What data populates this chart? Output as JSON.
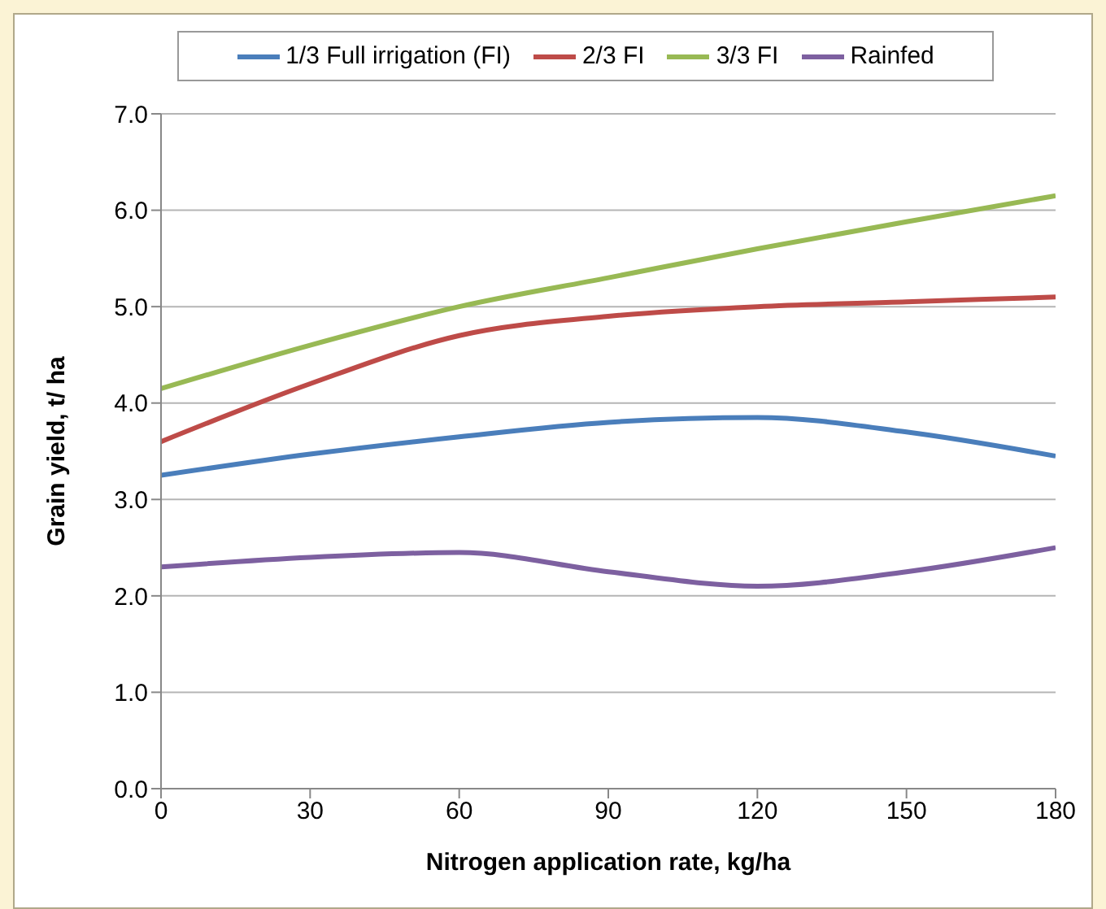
{
  "chart_data": {
    "type": "line",
    "xlabel": "Nitrogen application rate, kg/ha",
    "ylabel": "Grain yield, t/ ha",
    "x": [
      0,
      30,
      60,
      90,
      120,
      150,
      180
    ],
    "series": [
      {
        "name": "1/3 Full irrigation (FI)",
        "color": "#4a7ebb",
        "values": [
          3.25,
          3.47,
          3.65,
          3.8,
          3.85,
          3.7,
          3.45
        ]
      },
      {
        "name": "2/3 FI",
        "color": "#be4b48",
        "values": [
          3.6,
          4.2,
          4.7,
          4.9,
          5.0,
          5.05,
          5.1
        ]
      },
      {
        "name": "3/3 FI",
        "color": "#98b954",
        "values": [
          4.15,
          4.6,
          5.0,
          5.3,
          5.6,
          5.88,
          6.15
        ]
      },
      {
        "name": "Rainfed",
        "color": "#7d60a0",
        "values": [
          2.3,
          2.4,
          2.45,
          2.25,
          2.1,
          2.25,
          2.5
        ]
      }
    ],
    "xlim": [
      0,
      180
    ],
    "xticks": [
      0,
      30,
      60,
      90,
      120,
      150,
      180
    ],
    "ylim": [
      0,
      7
    ],
    "yticks": [
      {
        "value": 0,
        "label": "0.0"
      },
      {
        "value": 1,
        "label": "1.0"
      },
      {
        "value": 2,
        "label": "2.0"
      },
      {
        "value": 3,
        "label": "3.0"
      },
      {
        "value": 4,
        "label": "4.0"
      },
      {
        "value": 5,
        "label": "5.0"
      },
      {
        "value": 6,
        "label": "6.0"
      },
      {
        "value": 7,
        "label": "7.0"
      }
    ],
    "grid": "y",
    "legend": "top",
    "marker": "none",
    "line_style": "solid"
  }
}
